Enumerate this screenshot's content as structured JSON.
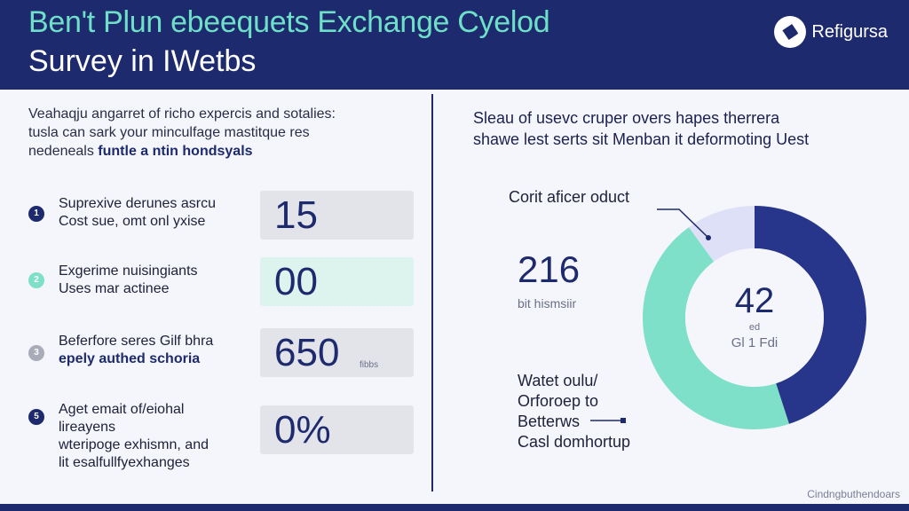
{
  "header": {
    "title_line1": "Ben't Plun ebeequets Exchange Cyelod",
    "title_line2": "Survey in IWetbs",
    "brand_name": "Refigursa"
  },
  "intro": {
    "line1": "Veahaqju angarret of richo expercis and sotalies:",
    "line2": "tusla can sark your minculfage mastitque res",
    "line3_plain": "nedeneals ",
    "line3_highlight": "funtle a ntin hondsyals"
  },
  "stats": [
    {
      "index": "1",
      "label_line1": "Suprexive derunes asrcu",
      "label_line2": "Cost sue, omt onl yxise",
      "value": "15",
      "unit": "",
      "bullet_color": "#1e2a6e",
      "box_color": "#e3e4ea"
    },
    {
      "index": "2",
      "label_line1": "Exgerime nuisingiants",
      "label_line2": "Uses mar actinee",
      "value": "00",
      "unit": "",
      "bullet_color": "#7ee0c8",
      "box_color": "#ddf4ee"
    },
    {
      "index": "3",
      "label_line1": "Beferfore seres Gilf bhra",
      "label_line2": "epely authed schoria",
      "value": "650",
      "unit": "fibbs",
      "bullet_color": "#a9abb8",
      "box_color": "#e3e4ea"
    },
    {
      "index": "5",
      "label_line1": "Aget emait of/eiohal",
      "label_line2": "lireayens",
      "label_line3": "wteripoge exhismn, and",
      "label_line4": "lit esalfullfyexhanges",
      "value": "0%",
      "unit": "",
      "bullet_color": "#1e2a6e",
      "box_color": "#e3e4ea"
    }
  ],
  "right": {
    "question_line1": "Sleau of usevc cruper overs hapes therrera",
    "question_line2": "shawe lest serts sit Menban it deformoting Uest",
    "chart_caption": "Corit aficer oduct",
    "left_value": "216",
    "left_sub": "bit hismsiir",
    "legend_line1": "Watet oulu/",
    "legend_line2": "Orforoep to",
    "legend_line3": "Betterws",
    "legend_line4": "Casl domhortup"
  },
  "chart_data": {
    "type": "pie",
    "title": "",
    "center_value": "42",
    "center_sub1": "ed",
    "center_sub2": "Gl 1 Fdi",
    "slices": [
      {
        "label": "Watet oulu/ Orforoep to Betterws Casl domhortup",
        "value": 45,
        "color": "#27358a"
      },
      {
        "label": "",
        "value": 45,
        "color": "#7ee0c8"
      },
      {
        "label": "Corit aficer oduct",
        "value": 10,
        "color": "#dde0f7"
      }
    ]
  },
  "footer": {
    "note": "Cindngbuthendoars"
  }
}
